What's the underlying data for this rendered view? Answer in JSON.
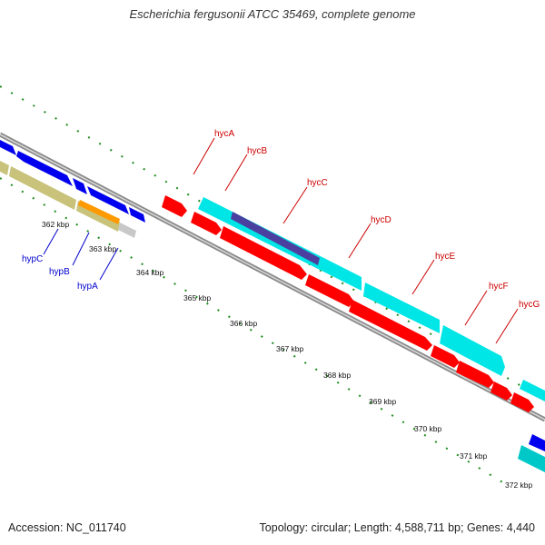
{
  "title": "Escherichia fergusonii ATCC 35469, complete genome",
  "footer": {
    "accession": "Accession: NC_011740",
    "stats": "Topology: circular; Length: 4,588,711 bp; Genes: 4,440"
  },
  "scale_labels": [
    "362 kbp",
    "363 kbp",
    "364 kbp",
    "365 kbp",
    "366 kbp",
    "367 kbp",
    "368 kbp",
    "369 kbp",
    "370 kbp",
    "371 kbp",
    "372 kbp"
  ],
  "gene_labels": {
    "reverse": [
      "hypC",
      "hypB",
      "hypA"
    ],
    "forward": [
      "hycA",
      "hycB",
      "hycC",
      "hycD",
      "hycE",
      "hycF",
      "hycG"
    ]
  },
  "colors": {
    "backbone": "#8a8a8a",
    "tick": "#1e8c1e",
    "cds": "#ff0000",
    "gene_forward": "#00e5e5",
    "gene_reverse": "#0000ee",
    "label_forward": "#cc0000",
    "label_reverse": "#0000cc",
    "rna_olive": "#c8c27a",
    "orange": "#ff9900",
    "feature_purple": "#4b3fa0"
  }
}
